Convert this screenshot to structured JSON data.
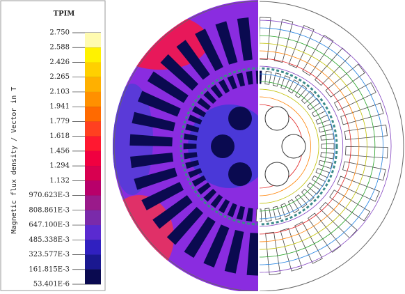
{
  "legend": {
    "title": "TPIM",
    "axis_label": "Magnetic flux density / Vector in T",
    "levels": [
      "2.750",
      "2.588",
      "2.426",
      "2.265",
      "2.103",
      "1.941",
      "1.779",
      "1.618",
      "1.456",
      "1.294",
      "1.132",
      "970.623E-3",
      "808.861E-3",
      "647.100E-3",
      "485.338E-3",
      "323.577E-3",
      "161.815E-3",
      "53.401E-6"
    ],
    "colors": [
      "#fffbb0",
      "#fff200",
      "#ffd000",
      "#ffb000",
      "#ff9000",
      "#ff6a00",
      "#ff4020",
      "#ff1830",
      "#f00040",
      "#d80050",
      "#b8006a",
      "#9a1a8a",
      "#7a2aaa",
      "#5a2ad0",
      "#3020c0",
      "#1a1890",
      "#0a0a50"
    ]
  }
}
